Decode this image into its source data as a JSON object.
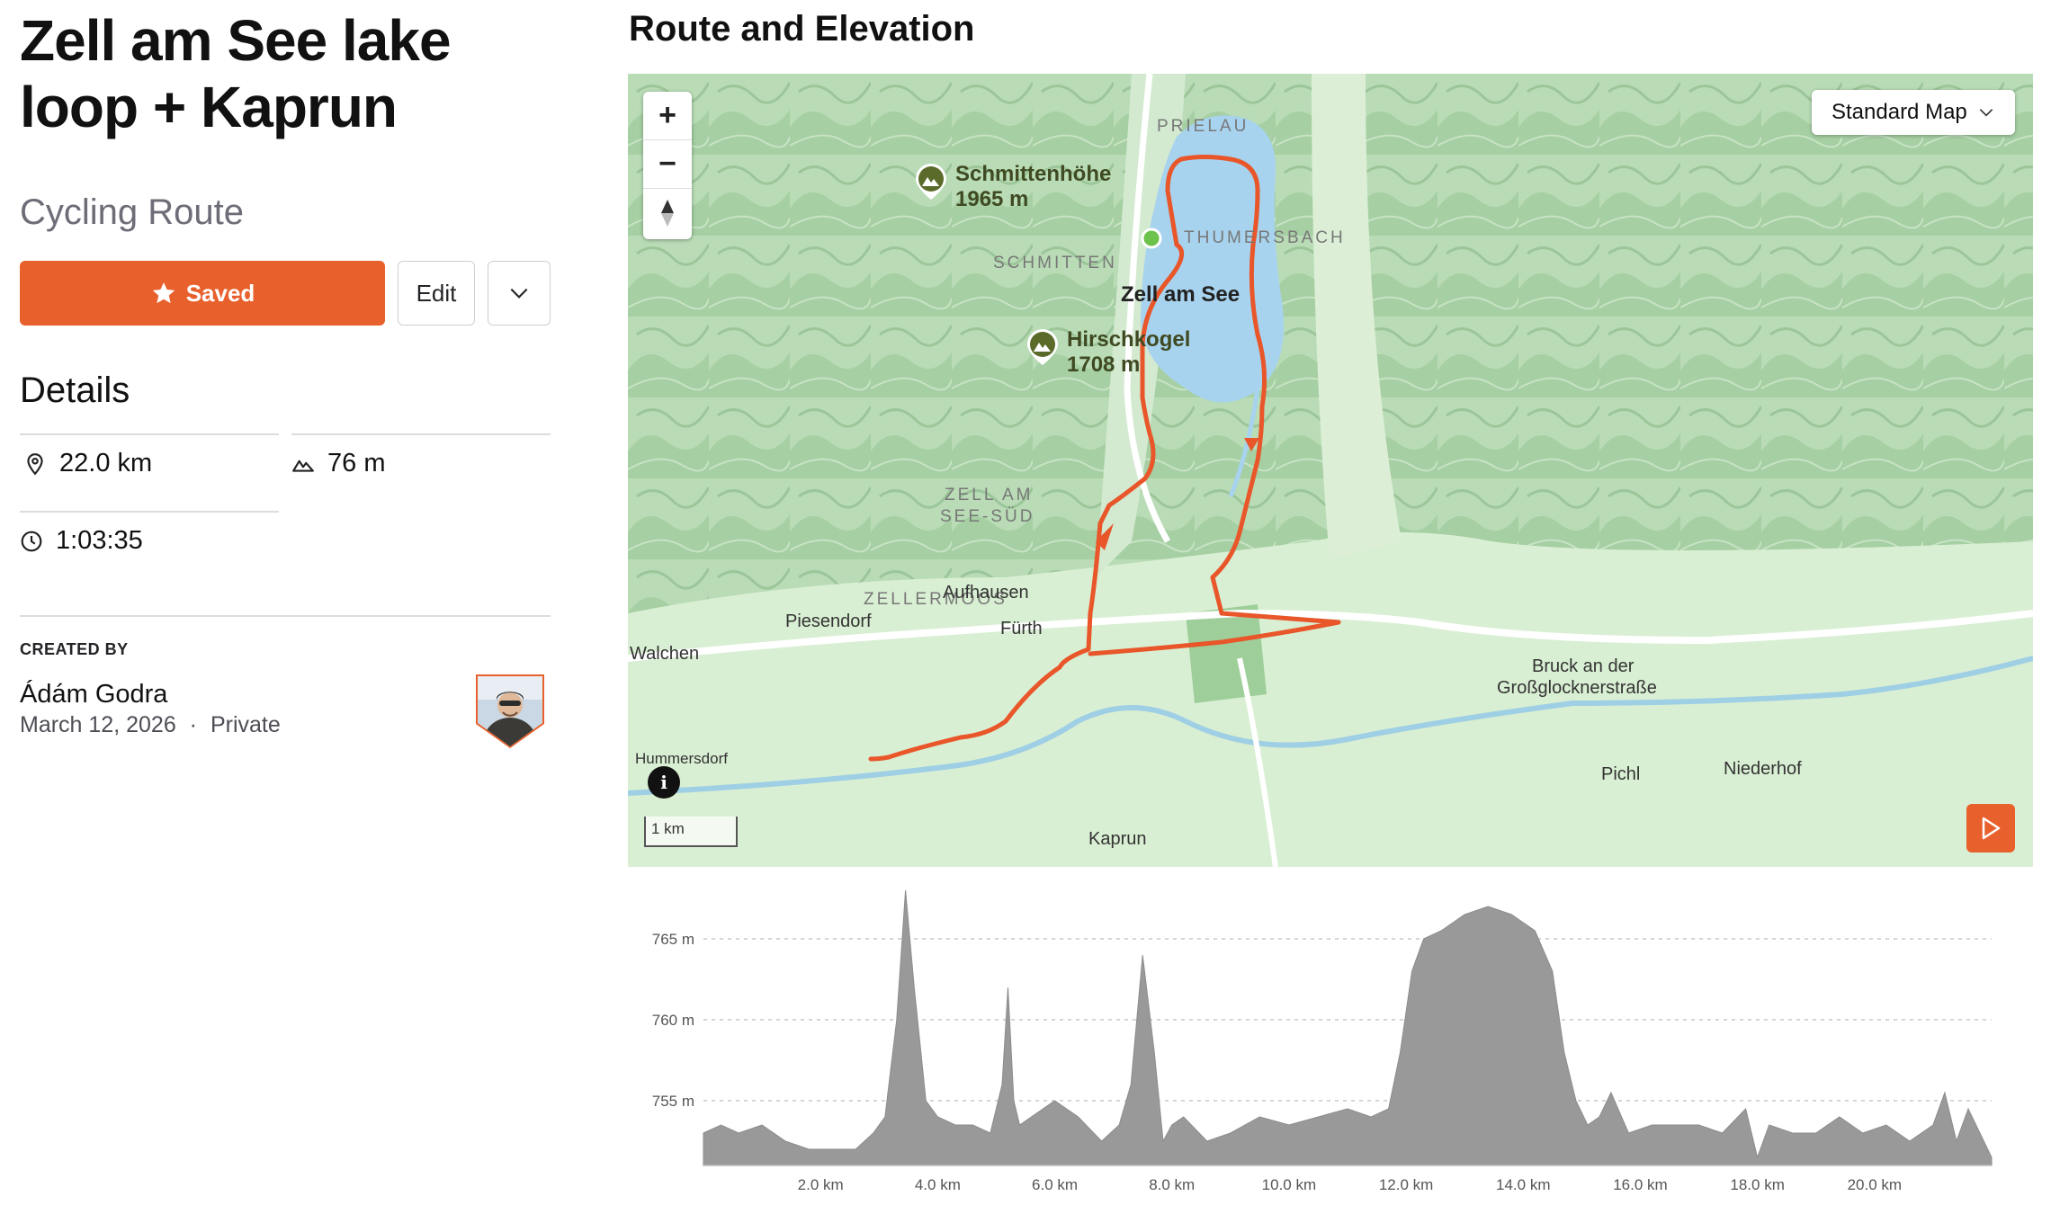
{
  "route": {
    "title": "Zell am See lake loop + Kaprun",
    "type": "Cycling Route",
    "saved_label": "Saved",
    "edit_label": "Edit"
  },
  "details": {
    "heading": "Details",
    "distance": "22.0 km",
    "elevation_gain": "76 m",
    "duration": "1:03:35"
  },
  "creator": {
    "label": "CREATED BY",
    "name": "Ádám Godra",
    "date": "March 12, 2026",
    "separator": "·",
    "visibility": "Private"
  },
  "map": {
    "section_title": "Route and Elevation",
    "map_type": "Standard Map",
    "zoom_in": "+",
    "zoom_out": "−",
    "scale_label": "1 km",
    "info_label": "i",
    "peaks": [
      {
        "name": "Schmittenhöhe",
        "height": "1965 m"
      },
      {
        "name": "Hirschkogel",
        "height": "1708 m"
      }
    ],
    "areas": [
      "PRIELAU",
      "THUMERSBACH",
      "SCHMITTEN",
      "ZELL AM",
      "SEE-SÜD",
      "ZELLERMOOS"
    ],
    "towns": [
      "Zell am See",
      "Piesendorf",
      "Fürth",
      "Aufhausen",
      "Walchen",
      "Hummersdorf",
      "Kaprun",
      "Bruck an der",
      "Großglocknerstraße",
      "Pichl",
      "Niederhof"
    ],
    "colors": {
      "route": "#e8562a",
      "lake": "#a8d3ee",
      "start": "#6cc24a"
    }
  },
  "chart_data": {
    "type": "area",
    "title": "",
    "xlabel": "",
    "ylabel": "",
    "x_unit": "km",
    "y_unit": "m",
    "xlim": [
      0,
      22.0
    ],
    "ylim": [
      751,
      768
    ],
    "xticks": [
      "2.0 km",
      "4.0 km",
      "6.0 km",
      "8.0 km",
      "10.0 km",
      "12.0 km",
      "14.0 km",
      "16.0 km",
      "18.0 km",
      "20.0 km"
    ],
    "xtick_values": [
      2,
      4,
      6,
      8,
      10,
      12,
      14,
      16,
      18,
      20
    ],
    "yticks": [
      "755 m",
      "760 m",
      "765 m"
    ],
    "ytick_values": [
      755,
      760,
      765
    ],
    "grid": true,
    "color": "#999999",
    "x": [
      0,
      0.3,
      0.6,
      1.0,
      1.4,
      1.8,
      2.2,
      2.6,
      2.9,
      3.1,
      3.3,
      3.45,
      3.6,
      3.8,
      4.0,
      4.3,
      4.6,
      4.9,
      5.1,
      5.2,
      5.3,
      5.4,
      5.6,
      6.0,
      6.4,
      6.8,
      7.1,
      7.3,
      7.5,
      7.7,
      7.85,
      8.0,
      8.2,
      8.6,
      9.0,
      9.5,
      10.0,
      10.5,
      11.0,
      11.4,
      11.7,
      11.9,
      12.1,
      12.3,
      12.6,
      13.0,
      13.4,
      13.8,
      14.2,
      14.5,
      14.7,
      14.9,
      15.1,
      15.3,
      15.5,
      15.8,
      16.2,
      16.6,
      17.0,
      17.4,
      17.8,
      18.0,
      18.2,
      18.6,
      19.0,
      19.4,
      19.8,
      20.2,
      20.6,
      21.0,
      21.2,
      21.4,
      21.6,
      22.0
    ],
    "y": [
      753,
      753.5,
      753,
      753.5,
      752.5,
      752,
      752,
      752,
      753,
      754,
      760,
      768,
      762,
      755,
      754,
      753.5,
      753.5,
      753,
      756,
      762,
      755,
      753.5,
      754,
      755,
      754,
      752.5,
      753.5,
      756,
      764,
      758,
      752.5,
      753.5,
      754,
      752.5,
      753,
      754,
      753.5,
      754,
      754.5,
      754,
      754.5,
      758,
      763,
      765,
      765.5,
      766.5,
      767,
      766.5,
      765.5,
      763,
      758,
      755,
      753.5,
      754,
      755.5,
      753,
      753.5,
      753.5,
      753.5,
      753,
      754.5,
      751.5,
      753.5,
      753,
      753,
      754,
      753,
      753.5,
      752.5,
      753.5,
      755.5,
      752.5,
      754.5,
      751.5
    ]
  }
}
